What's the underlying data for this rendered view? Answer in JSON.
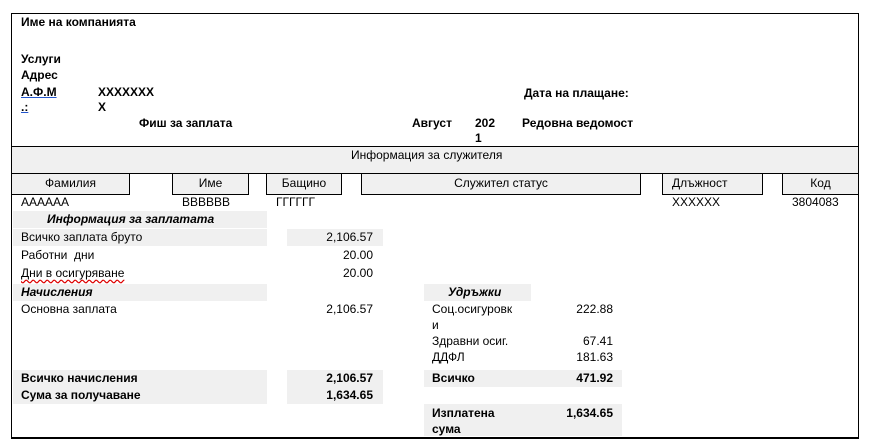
{
  "header": {
    "company": "Име на компанията",
    "services": "Услуги",
    "address": "Адрес",
    "vat_label": "А.Ф.М",
    "vat_label2": ".:",
    "vat_value": "XXXXXXX",
    "vat_value2": "X",
    "title": "Фиш за заплата",
    "month": "Август",
    "year1": "202",
    "year2": "1",
    "sheet_type": "Редовна ведомост",
    "payment_date_label": "Дата на плащане:"
  },
  "employee": {
    "section_title": "Информация за служителя",
    "columns": [
      "Фамилия",
      "Име",
      "Бащино",
      "Служител статус",
      "Длъжност",
      "Код"
    ],
    "values": {
      "surname": "АААААА",
      "name": "ВВВВВВ",
      "father": "ГГГГГГ",
      "position": "XXXXXX",
      "code": "3804083"
    }
  },
  "salary_info": {
    "title": "Информация за заплатата",
    "gross_label": "Всичко заплата бруто",
    "gross": "2,106.57",
    "work_days_label": "Работни  дни",
    "work_days": "20.00",
    "insured_days_label": "Дни в осигуряване",
    "insured_days": "20.00"
  },
  "accruals": {
    "title": "Начисления",
    "base_label": "Основна заплата",
    "base": "2,106.57",
    "total_label": "Всичко начисления",
    "total": "2,106.57",
    "net_label": "Сума за получаване",
    "net": "1,634.65"
  },
  "deductions": {
    "title": "Удръжки",
    "social_label1": "Соц.осигуровк",
    "social_label2": "и",
    "social": "222.88",
    "health_label": "Здравни осиг.",
    "health": "67.41",
    "tax_label": "ДДФЛ",
    "tax": "181.63",
    "total_label": "Всичко",
    "total": "471.92",
    "paid_label1": "Изплатена",
    "paid_label2": "сума",
    "paid": "1,634.65"
  }
}
